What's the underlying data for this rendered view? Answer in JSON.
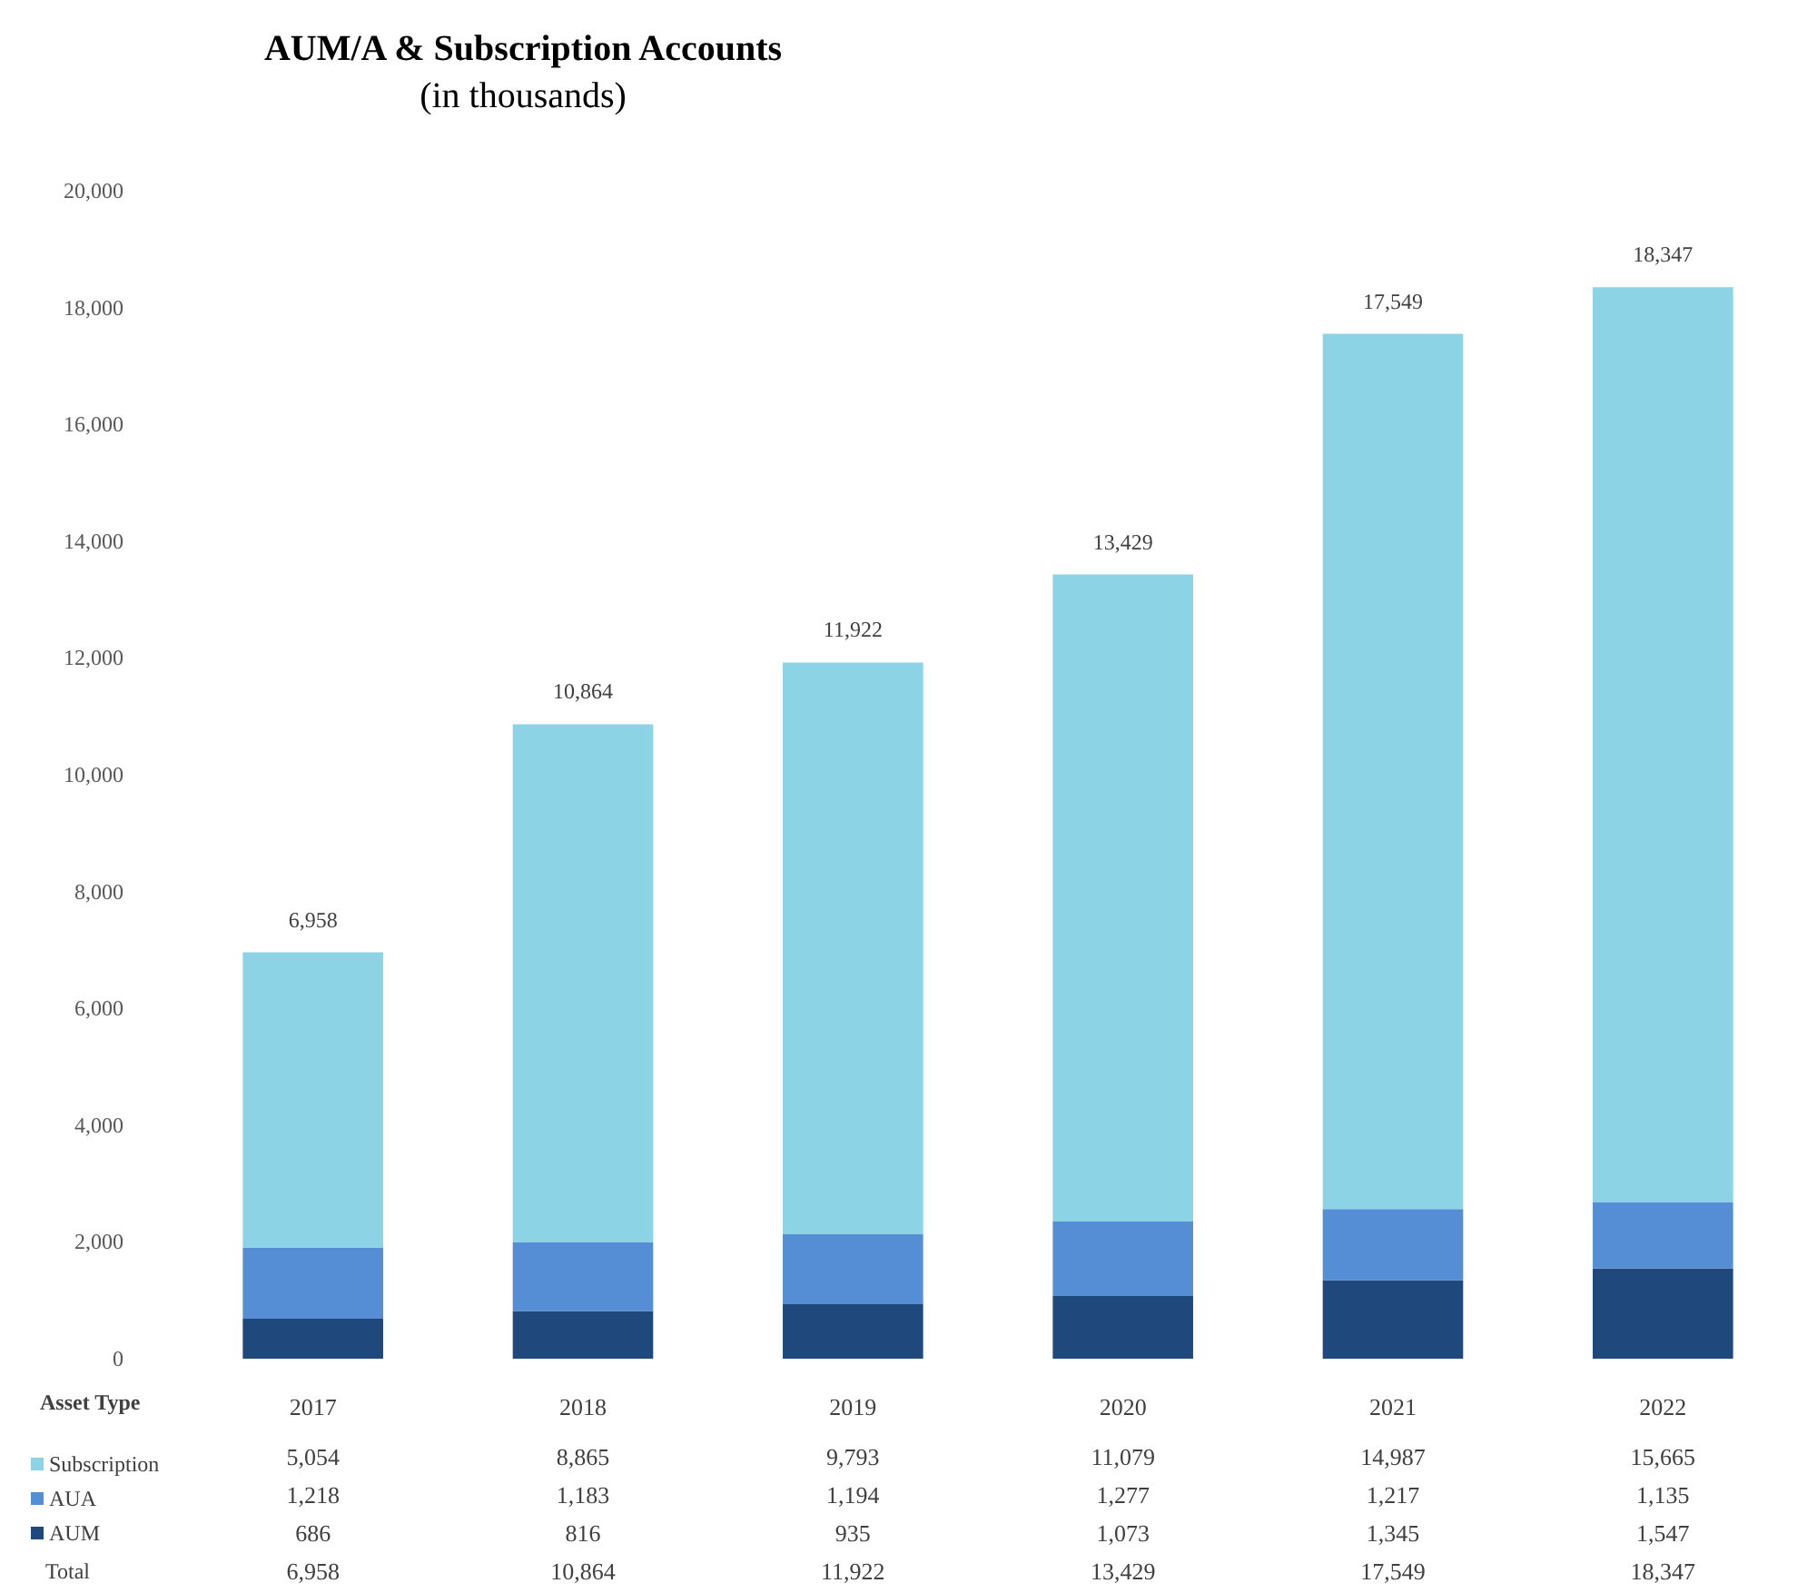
{
  "chart_data": {
    "type": "bar",
    "title": "AUM/A & Subscription Accounts",
    "subtitle": "(in thousands)",
    "legend_title": "Asset Type",
    "categories": [
      "2017",
      "2018",
      "2019",
      "2020",
      "2021",
      "2022"
    ],
    "stacked": true,
    "series": [
      {
        "name": "AUM",
        "color": "#1f497d",
        "values": [
          686,
          816,
          935,
          1073,
          1345,
          1547
        ],
        "value_labels": [
          "686",
          "816",
          "935",
          "1,073",
          "1,345",
          "1,547"
        ]
      },
      {
        "name": "AUA",
        "color": "#558ed5",
        "values": [
          1218,
          1183,
          1194,
          1277,
          1217,
          1135
        ],
        "value_labels": [
          "1,218",
          "1,183",
          "1,194",
          "1,277",
          "1,217",
          "1,135"
        ]
      },
      {
        "name": "Subscription",
        "color": "#8dd3e6",
        "values": [
          5054,
          8865,
          9793,
          11079,
          14987,
          15665
        ],
        "value_labels": [
          "5,054",
          "8,865",
          "9,793",
          "11,079",
          "14,987",
          "15,665"
        ]
      }
    ],
    "totals": [
      "6,958",
      "10,864",
      "11,922",
      "13,429",
      "17,549",
      "18,347"
    ],
    "ylim": [
      0,
      20000
    ],
    "yticks": [
      {
        "value": 0,
        "label": "0"
      },
      {
        "value": 2000,
        "label": "2,000"
      },
      {
        "value": 4000,
        "label": "4,000"
      },
      {
        "value": 6000,
        "label": "6,000"
      },
      {
        "value": 8000,
        "label": "8,000"
      },
      {
        "value": 10000,
        "label": "10,000"
      },
      {
        "value": 12000,
        "label": "12,000"
      },
      {
        "value": 14000,
        "label": "14,000"
      },
      {
        "value": 16000,
        "label": "16,000"
      },
      {
        "value": 18000,
        "label": "18,000"
      },
      {
        "value": 20000,
        "label": "20,000"
      }
    ],
    "annotations": [
      "Total"
    ],
    "grid": false,
    "legend": "bottom left"
  }
}
